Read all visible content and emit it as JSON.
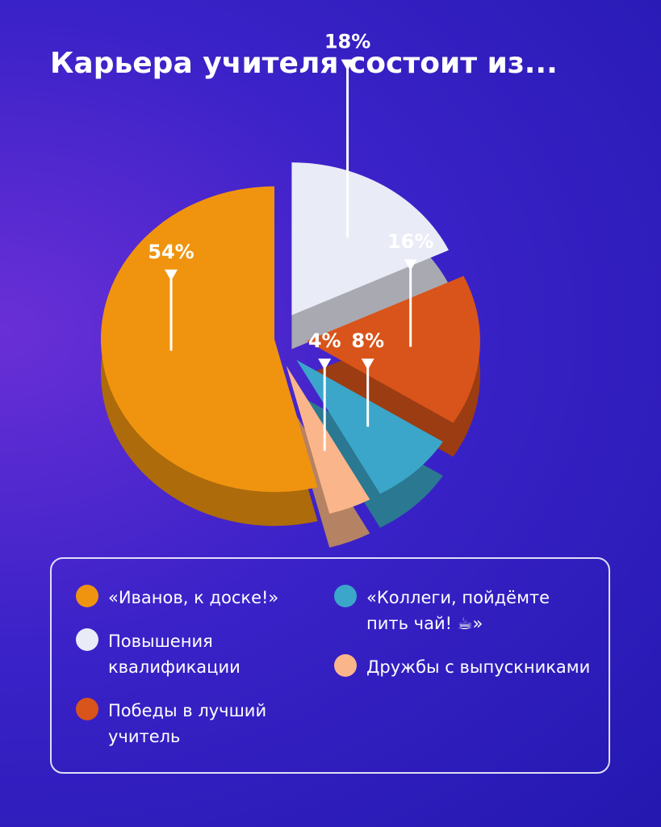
{
  "chart_data": {
    "type": "pie",
    "title": "Карьера учителя состоит из...",
    "categories": [
      "«Иванов, к доске!»",
      "Повышения квалификации",
      "Победы в лучший учитель",
      "«Коллеги, пойдёмте пить чай! ☕»",
      "Дружбы с выпускниками"
    ],
    "values": [
      54,
      18,
      16,
      8,
      4
    ],
    "value_labels": [
      "54%",
      "18%",
      "16%",
      "8%",
      "4%"
    ],
    "colors": [
      "#f0940f",
      "#e9ebf6",
      "#d9541a",
      "#3ba6c9",
      "#fbb58a"
    ]
  }
}
